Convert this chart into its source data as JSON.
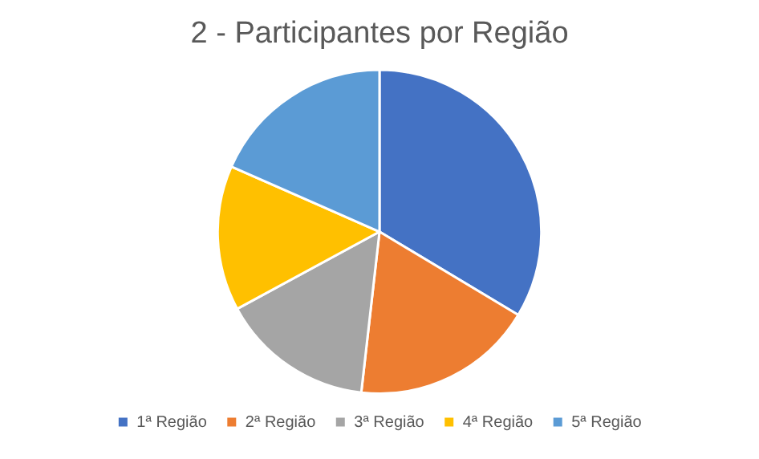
{
  "chart_data": {
    "type": "pie",
    "title": "2 - Participantes por Região",
    "categories": [
      "1ª Região",
      "2ª Região",
      "3ª Região",
      "4ª Região",
      "5ª Região"
    ],
    "values": [
      33.6,
      18.2,
      15.3,
      14.5,
      18.4
    ],
    "colors": [
      "#4472c4",
      "#ed7d31",
      "#a5a5a5",
      "#ffc000",
      "#5b9bd5"
    ],
    "legend": "bottom"
  }
}
